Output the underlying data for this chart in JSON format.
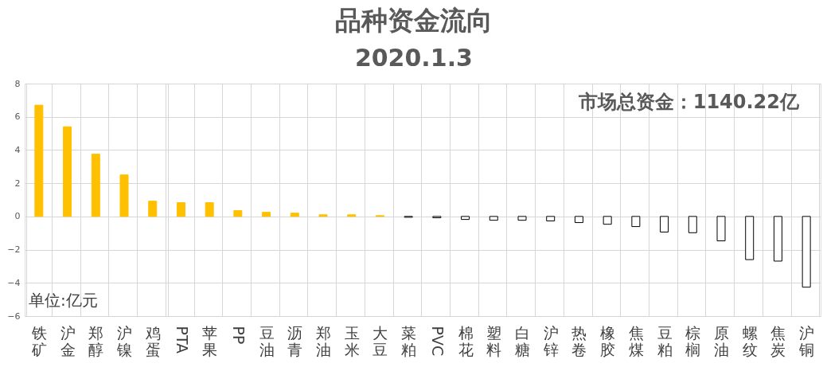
{
  "chart_data": {
    "type": "bar",
    "title": "品种资金流向",
    "subtitle": "2020.1.3",
    "categories": [
      "铁矿",
      "沪金",
      "郑醇",
      "沪镍",
      "鸡蛋",
      "PTA",
      "苹果",
      "PP",
      "豆油",
      "沥青",
      "郑油",
      "玉米",
      "大豆",
      "菜粕",
      "PVC",
      "棉花",
      "塑料",
      "白糖",
      "沪锌",
      "热卷",
      "橡胶",
      "焦煤",
      "豆粕",
      "棕榈",
      "原油",
      "螺纹",
      "焦炭",
      "沪铜"
    ],
    "values": [
      6.7,
      5.4,
      3.75,
      2.5,
      0.92,
      0.83,
      0.83,
      0.35,
      0.25,
      0.2,
      0.1,
      0.1,
      0.05,
      -0.05,
      -0.08,
      -0.18,
      -0.23,
      -0.23,
      -0.27,
      -0.37,
      -0.47,
      -0.61,
      -0.94,
      -0.98,
      -1.47,
      -2.6,
      -2.69,
      -4.26
    ],
    "colors": [
      "#ffc000",
      "#ffc000",
      "#ffc000",
      "#ffc000",
      "#ffc000",
      "#ffc000",
      "#ffc000",
      "#ffc000",
      "#ffc000",
      "#ffc000",
      "#ffc000",
      "#ffc000",
      "#ffc000",
      "#ffffff",
      "#ffffff",
      "#ffffff",
      "#ffffff",
      "#ffffff",
      "#ffffff",
      "#ffffff",
      "#ffffff",
      "#ffffff",
      "#ffffff",
      "#ffffff",
      "#ffffff",
      "#ffffff",
      "#ffffff",
      "#ffffff"
    ],
    "ylim": [
      -6,
      8
    ],
    "yticks": [
      -6,
      -4,
      -2,
      0,
      2,
      4,
      6,
      8
    ],
    "grid": true,
    "annotations": [
      "市场总资金：1140.22亿",
      "单位:亿元"
    ]
  }
}
